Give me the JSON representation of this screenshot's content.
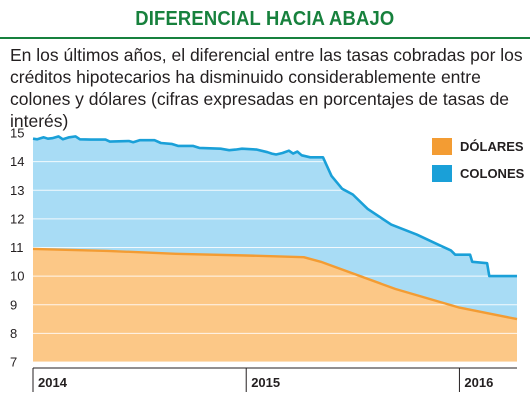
{
  "header": {
    "title": "DIFERENCIAL HACIA ABAJO",
    "subtitle": "En los últimos años, el diferencial entre las tasas cobradas por los créditos hipotecarios ha disminuido considerablemente entre colones y dólares (cifras expresadas en porcentajes de tasas de interés)"
  },
  "colors": {
    "title": "#17813d",
    "colones_fill": "#a8dcf5",
    "colones_line": "#1aa0d8",
    "dolares_fill": "#fcc887",
    "dolares_line": "#f39c33"
  },
  "chart_data": {
    "type": "area",
    "title": "DIFERENCIAL HACIA ABAJO",
    "xlabel": "",
    "ylabel": "",
    "ylim": [
      7,
      15
    ],
    "xlim": [
      2014.0,
      2016.27
    ],
    "yticks": [
      "15",
      "14",
      "13",
      "12",
      "11",
      "10",
      "9",
      "8",
      "7"
    ],
    "xticks": [
      {
        "x": 2014.0,
        "label": "2014"
      },
      {
        "x": 2015.0,
        "label": "2015"
      },
      {
        "x": 2016.0,
        "label": "2016"
      }
    ],
    "grid": true,
    "legend": {
      "placement": "top-right",
      "entries": [
        "DÓLARES",
        "COLONES"
      ]
    },
    "series": [
      {
        "name": "COLONES",
        "points": [
          [
            2014.0,
            14.8
          ],
          [
            2014.02,
            14.78
          ],
          [
            2014.05,
            14.85
          ],
          [
            2014.07,
            14.8
          ],
          [
            2014.09,
            14.82
          ],
          [
            2014.12,
            14.88
          ],
          [
            2014.14,
            14.78
          ],
          [
            2014.17,
            14.85
          ],
          [
            2014.2,
            14.88
          ],
          [
            2014.22,
            14.78
          ],
          [
            2014.27,
            14.77
          ],
          [
            2014.34,
            14.77
          ],
          [
            2014.36,
            14.7
          ],
          [
            2014.45,
            14.72
          ],
          [
            2014.47,
            14.68
          ],
          [
            2014.5,
            14.75
          ],
          [
            2014.57,
            14.75
          ],
          [
            2014.6,
            14.65
          ],
          [
            2014.65,
            14.62
          ],
          [
            2014.68,
            14.55
          ],
          [
            2014.75,
            14.55
          ],
          [
            2014.78,
            14.48
          ],
          [
            2014.88,
            14.45
          ],
          [
            2014.92,
            14.4
          ],
          [
            2014.95,
            14.42
          ],
          [
            2014.98,
            14.45
          ],
          [
            2015.05,
            14.42
          ],
          [
            2015.1,
            14.33
          ],
          [
            2015.12,
            14.28
          ],
          [
            2015.14,
            14.25
          ],
          [
            2015.17,
            14.3
          ],
          [
            2015.2,
            14.38
          ],
          [
            2015.22,
            14.28
          ],
          [
            2015.24,
            14.35
          ],
          [
            2015.26,
            14.22
          ],
          [
            2015.3,
            14.15
          ],
          [
            2015.36,
            14.15
          ],
          [
            2015.4,
            13.5
          ],
          [
            2015.45,
            13.05
          ],
          [
            2015.5,
            12.85
          ],
          [
            2015.57,
            12.35
          ],
          [
            2015.68,
            11.8
          ],
          [
            2015.8,
            11.45
          ],
          [
            2015.9,
            11.1
          ],
          [
            2015.96,
            10.9
          ],
          [
            2015.98,
            10.75
          ],
          [
            2016.05,
            10.75
          ],
          [
            2016.06,
            10.5
          ],
          [
            2016.13,
            10.45
          ],
          [
            2016.14,
            10.0
          ],
          [
            2016.27,
            10.0
          ]
        ]
      },
      {
        "name": "DÓLARES",
        "points": [
          [
            2014.0,
            10.95
          ],
          [
            2014.35,
            10.88
          ],
          [
            2014.67,
            10.78
          ],
          [
            2015.0,
            10.72
          ],
          [
            2015.27,
            10.66
          ],
          [
            2015.35,
            10.5
          ],
          [
            2015.7,
            9.55
          ],
          [
            2016.0,
            8.9
          ],
          [
            2016.27,
            8.5
          ]
        ]
      }
    ]
  }
}
